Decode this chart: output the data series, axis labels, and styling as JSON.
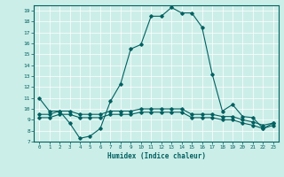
{
  "xlabel": "Humidex (Indice chaleur)",
  "ylabel": "",
  "bg_color": "#cceee8",
  "grid_color": "#ffffff",
  "line_color": "#006060",
  "xlim": [
    -0.5,
    23.5
  ],
  "ylim": [
    7,
    19.5
  ],
  "yticks": [
    7,
    8,
    9,
    10,
    11,
    12,
    13,
    14,
    15,
    16,
    17,
    18,
    19
  ],
  "xticks": [
    0,
    1,
    2,
    3,
    4,
    5,
    6,
    7,
    8,
    9,
    10,
    11,
    12,
    13,
    14,
    15,
    16,
    17,
    18,
    19,
    20,
    21,
    22,
    23
  ],
  "line1_x": [
    0,
    1,
    2,
    3,
    4,
    5,
    6,
    7,
    8,
    9,
    10,
    11,
    12,
    13,
    14,
    15,
    16,
    17,
    18,
    19,
    20,
    21,
    22,
    23
  ],
  "line1_y": [
    11.0,
    9.8,
    9.8,
    8.7,
    7.3,
    7.5,
    8.2,
    10.7,
    12.3,
    15.5,
    15.9,
    18.5,
    18.5,
    19.3,
    18.8,
    18.8,
    17.5,
    13.2,
    9.8,
    10.4,
    9.3,
    9.2,
    8.2,
    8.7
  ],
  "line2_x": [
    0,
    1,
    2,
    3,
    4,
    5,
    6,
    7,
    8,
    9,
    10,
    11,
    12,
    13,
    14,
    15,
    16,
    17,
    18,
    19,
    20,
    21,
    22,
    23
  ],
  "line2_y": [
    9.5,
    9.5,
    9.8,
    9.8,
    9.5,
    9.5,
    9.5,
    9.8,
    9.8,
    9.8,
    10.0,
    10.0,
    10.0,
    10.0,
    10.0,
    9.5,
    9.5,
    9.5,
    9.3,
    9.3,
    9.0,
    8.8,
    8.5,
    8.7
  ],
  "line3_x": [
    0,
    1,
    2,
    3,
    4,
    5,
    6,
    7,
    8,
    9,
    10,
    11,
    12,
    13,
    14,
    15,
    16,
    17,
    18,
    19,
    20,
    21,
    22,
    23
  ],
  "line3_y": [
    9.2,
    9.2,
    9.5,
    9.5,
    9.2,
    9.2,
    9.2,
    9.5,
    9.5,
    9.5,
    9.7,
    9.7,
    9.7,
    9.7,
    9.7,
    9.2,
    9.2,
    9.2,
    9.0,
    9.0,
    8.7,
    8.5,
    8.2,
    8.5
  ]
}
